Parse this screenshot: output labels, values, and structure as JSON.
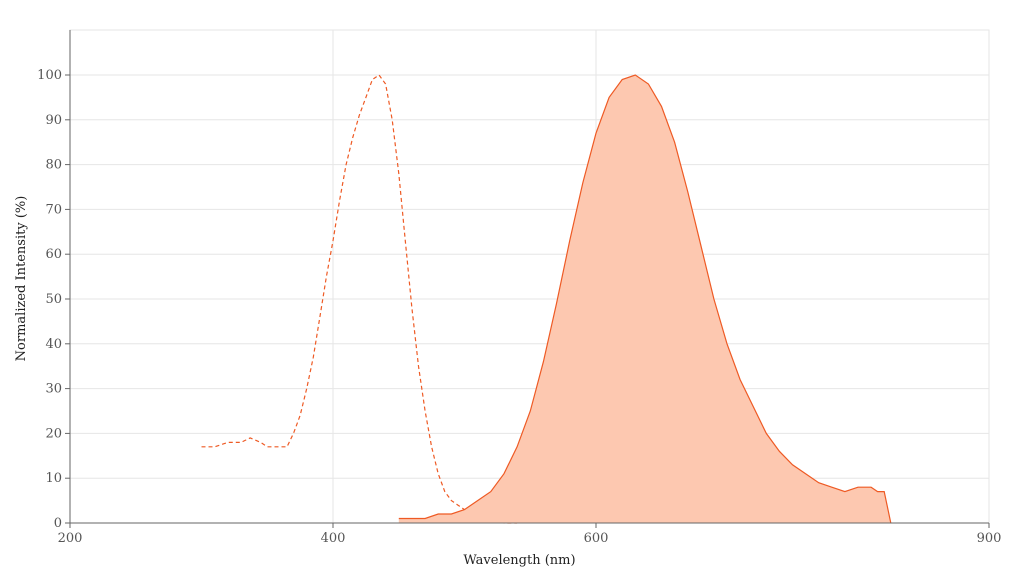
{
  "chart_data": {
    "type": "area",
    "xlabel": "Wavelength (nm)",
    "ylabel": "Normalized Intensity (%)",
    "xlim": [
      200,
      900
    ],
    "ylim": [
      0,
      110
    ],
    "x_ticks": [
      200,
      400,
      600,
      900
    ],
    "y_ticks": [
      0,
      10,
      20,
      30,
      40,
      50,
      60,
      70,
      80,
      90,
      100
    ],
    "grid": true,
    "colors": {
      "line": "#ee5a24",
      "fill": "#fdc8b0",
      "grid": "#e6e6e6",
      "axis": "#666666"
    },
    "series": [
      {
        "style": "dashed",
        "x": [
          300,
          310,
          320,
          330,
          337,
          345,
          350,
          355,
          360,
          365,
          370,
          375,
          380,
          385,
          390,
          395,
          400,
          405,
          410,
          415,
          420,
          425,
          430,
          435,
          440,
          445,
          450,
          455,
          460,
          465,
          470,
          475,
          480,
          485,
          490,
          495,
          500,
          505,
          510,
          515,
          520,
          530,
          535,
          540
        ],
        "y": [
          17,
          17,
          18,
          18,
          19,
          18,
          17,
          17,
          17,
          17,
          20,
          24,
          30,
          37,
          46,
          55,
          63,
          72,
          80,
          86,
          91,
          95,
          99,
          100,
          98,
          90,
          78,
          63,
          48,
          35,
          25,
          17,
          11,
          7,
          5,
          4,
          3,
          2,
          2,
          1,
          1,
          0,
          0,
          0
        ]
      },
      {
        "style": "filled",
        "x": [
          450,
          460,
          470,
          480,
          490,
          500,
          510,
          520,
          530,
          540,
          550,
          560,
          570,
          580,
          590,
          600,
          610,
          620,
          630,
          640,
          650,
          660,
          670,
          680,
          690,
          700,
          710,
          720,
          730,
          740,
          750,
          760,
          770,
          780,
          790,
          800,
          810,
          815,
          820,
          825
        ],
        "y": [
          1,
          1,
          1,
          2,
          2,
          3,
          5,
          7,
          11,
          17,
          25,
          36,
          49,
          63,
          76,
          87,
          95,
          99,
          100,
          98,
          93,
          85,
          74,
          62,
          50,
          40,
          32,
          26,
          20,
          16,
          13,
          11,
          9,
          8,
          7,
          8,
          8,
          7,
          7,
          0
        ]
      }
    ]
  }
}
